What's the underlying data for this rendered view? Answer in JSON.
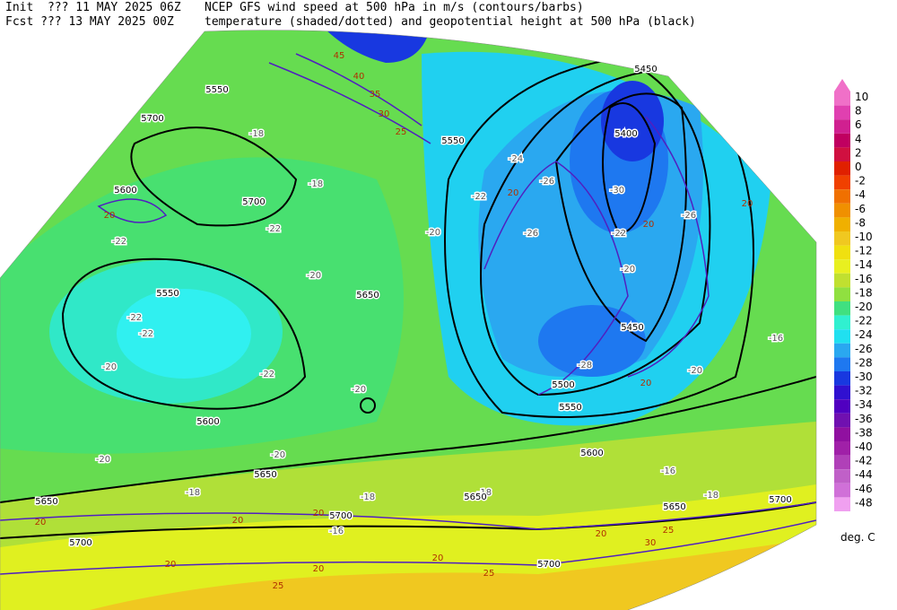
{
  "header": {
    "init_label": "Init  ??? 11 MAY 2025 06Z",
    "fcst_label": "Fcst ??? 13 MAY 2025 00Z",
    "title_line1": "NCEP GFS wind speed at 500 hPa in m/s (contours/barbs)",
    "title_line2": "temperature (shaded/dotted) and geopotential height at 500 hPa (black)"
  },
  "colorbar": {
    "levels": [
      10,
      8,
      6,
      4,
      2,
      0,
      -2,
      -4,
      -6,
      -8,
      -10,
      -12,
      -14,
      -16,
      -18,
      -20,
      -22,
      -24,
      -26,
      -28,
      -30,
      -32,
      -34,
      -36,
      -38,
      -40,
      -42,
      -44,
      -46,
      -48
    ],
    "colors": [
      "#f070c8",
      "#e040b0",
      "#d02090",
      "#c00060",
      "#d01040",
      "#e02000",
      "#f04000",
      "#f07000",
      "#f09000",
      "#f0b000",
      "#f0c820",
      "#f0e010",
      "#e8f020",
      "#c0e030",
      "#90e040",
      "#40e080",
      "#30f0d0",
      "#20e0f0",
      "#2aa8f0",
      "#1e78f0",
      "#1838e0",
      "#3010d0",
      "#5000c0",
      "#7010b0",
      "#9010a0",
      "#a020a8",
      "#b040b8",
      "#c060c8",
      "#d070d8",
      "#f0a0f0"
    ],
    "unit": "deg. C"
  },
  "height_labels": [
    "5450",
    "5400",
    "5700",
    "5700",
    "5550",
    "5650",
    "5550",
    "5450",
    "5500",
    "5550",
    "5600",
    "5600",
    "5650",
    "5650",
    "5700",
    "5650",
    "5650",
    "5700",
    "5700",
    "5700",
    "5550",
    "5600"
  ],
  "temperature_labels": [
    "-18",
    "-18",
    "-24",
    "-22",
    "-26",
    "-30",
    "-26",
    "-22",
    "-26",
    "-20",
    "-22",
    "-22",
    "-20",
    "-22",
    "-22",
    "-20",
    "-22",
    "-20",
    "-28",
    "-20",
    "-20",
    "-16",
    "-20",
    "-20",
    "-16",
    "-18",
    "-18",
    "-18",
    "-16",
    "-18"
  ],
  "wind_labels": [
    "45",
    "40",
    "35",
    "30",
    "25",
    "20",
    "20",
    "20",
    "20",
    "20",
    "20",
    "20",
    "20",
    "20",
    "20",
    "25",
    "30",
    "25",
    "25",
    "20",
    "20"
  ]
}
